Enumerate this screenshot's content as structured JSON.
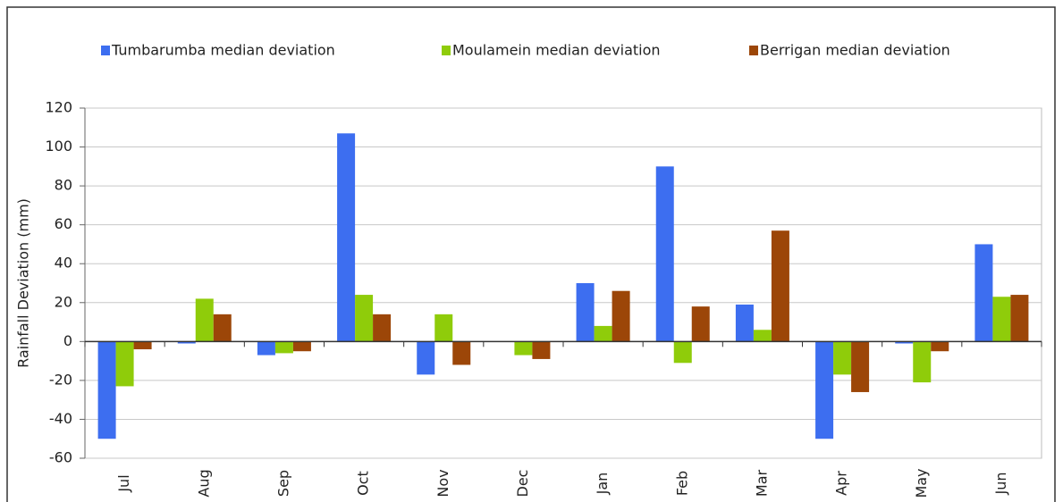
{
  "chart_data": {
    "type": "bar",
    "y_label": "Rainfall Deviation (mm)",
    "categories": [
      "Jul",
      "Aug",
      "Sep",
      "Oct",
      "Nov",
      "Dec",
      "Jan",
      "Feb",
      "Mar",
      "Apr",
      "May",
      "Jun"
    ],
    "series": [
      {
        "name": "Tumbarumba median deviation",
        "color": "#3d6ef0",
        "values": [
          -50,
          -1,
          -7,
          107,
          -17,
          0,
          30,
          90,
          19,
          -50,
          -1,
          50
        ]
      },
      {
        "name": "Moulamein median deviation",
        "color": "#8fcc0a",
        "values": [
          -23,
          22,
          -6,
          24,
          14,
          -7,
          8,
          -11,
          6,
          -17,
          -21,
          23
        ]
      },
      {
        "name": "Berrigan median deviation",
        "color": "#9c4608",
        "values": [
          -4,
          14,
          -5,
          14,
          -12,
          -9,
          26,
          18,
          57,
          -26,
          -5,
          24
        ]
      }
    ],
    "ylim": [
      -60,
      120
    ],
    "yticks": [
      -60,
      -40,
      -20,
      0,
      20,
      40,
      60,
      80,
      100,
      120
    ],
    "grid": true,
    "legend": "top"
  }
}
